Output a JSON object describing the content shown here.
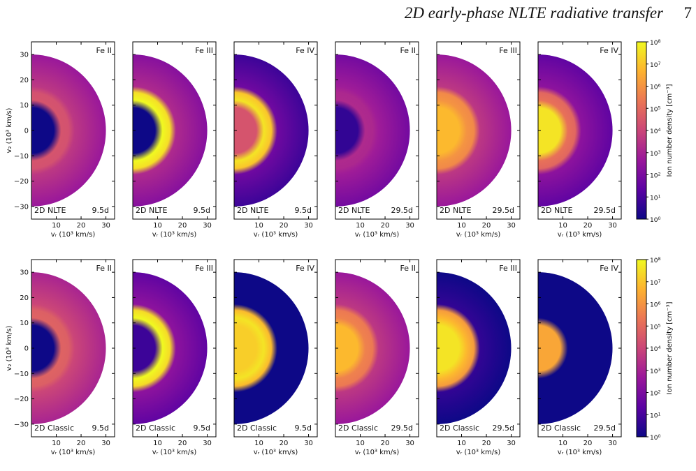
{
  "header": {
    "title": "2D early-phase NLTE radiative transfer",
    "page_number": "7"
  },
  "figure": {
    "xlabel": "v_r (10^3 km/s)",
    "ylabel": "v_z (10^3 km/s)",
    "colorbar_label": "Ion number density [cm^-3]",
    "colorbar_ticks": [
      "10^0",
      "10^1",
      "10^2",
      "10^3",
      "10^4",
      "10^5",
      "10^6",
      "10^7",
      "10^8"
    ],
    "x_ticks": [
      10,
      20,
      30
    ],
    "y_ticks": [
      30,
      20,
      10,
      0,
      -10,
      -20,
      -30
    ],
    "colormap": [
      "#0d0887",
      "#5b02a3",
      "#9a179b",
      "#cb4678",
      "#eb7655",
      "#fdb22f",
      "#f0f921"
    ],
    "rows": [
      {
        "method": "2D NLTE",
        "panels": [
          {
            "ion": "Fe II",
            "time": "9.5d",
            "core": 0.0,
            "shell": 0.55,
            "outer": 0.45
          },
          {
            "ion": "Fe III",
            "time": "9.5d",
            "core": 0.0,
            "shell": 1.0,
            "outer": 0.4
          },
          {
            "ion": "Fe IV",
            "time": "9.5d",
            "core": 0.55,
            "shell": 0.95,
            "outer": 0.22
          },
          {
            "ion": "Fe II",
            "time": "29.5d",
            "core": 0.08,
            "shell": 0.4,
            "outer": 0.35
          },
          {
            "ion": "Fe III",
            "time": "29.5d",
            "core": 0.85,
            "shell": 0.75,
            "outer": 0.45
          },
          {
            "ion": "Fe IV",
            "time": "29.5d",
            "core": 0.95,
            "shell": 0.65,
            "outer": 0.3
          }
        ]
      },
      {
        "method": "2D Classic",
        "panels": [
          {
            "ion": "Fe II",
            "time": "9.5d",
            "core": 0.0,
            "shell": 0.6,
            "outer": 0.5
          },
          {
            "ion": "Fe III",
            "time": "9.5d",
            "core": 0.1,
            "shell": 1.0,
            "outer": 0.3
          },
          {
            "ion": "Fe IV",
            "time": "9.5d",
            "core": 0.9,
            "shell": 0.95,
            "outer": 0.0
          },
          {
            "ion": "Fe II",
            "time": "29.5d",
            "core": 0.85,
            "shell": 0.7,
            "outer": 0.45
          },
          {
            "ion": "Fe III",
            "time": "29.5d",
            "core": 0.95,
            "shell": 0.85,
            "outer": 0.08
          },
          {
            "ion": "Fe IV",
            "time": "29.5d",
            "core": 0.8,
            "shell": 0.0,
            "outer": 0.0
          }
        ]
      }
    ]
  }
}
